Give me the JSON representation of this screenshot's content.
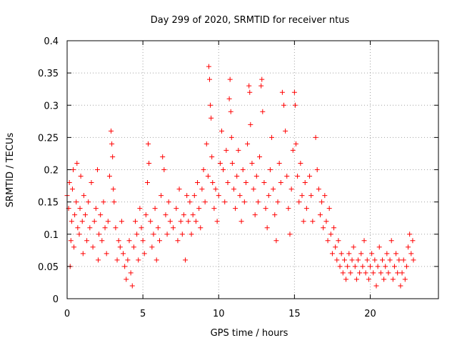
{
  "chart_data": {
    "type": "scatter",
    "title": "Day 299 of 2020, SRMTID for receiver ntus",
    "xlabel": "GPS time / hours",
    "ylabel": "SRMTID / TECUs",
    "xlim": [
      0,
      24.5
    ],
    "ylim": [
      0,
      0.4
    ],
    "x_ticks": [
      0,
      5,
      10,
      15,
      20
    ],
    "x_tick_labels": [
      "0",
      "5",
      "10",
      "15",
      "20"
    ],
    "y_ticks": [
      0,
      0.05,
      0.1,
      0.15,
      0.2,
      0.25,
      0.3,
      0.35,
      0.4
    ],
    "y_tick_labels": [
      "0",
      "0.05",
      "0.1",
      "0.15",
      "0.2",
      "0.25",
      "0.3",
      "0.35",
      "0.4"
    ],
    "grid": true,
    "marker": "plus",
    "color": "#ff0000",
    "series": [
      {
        "name": "SRMTID",
        "points": [
          [
            0.0,
            0.16
          ],
          [
            0.1,
            0.14
          ],
          [
            0.15,
            0.18
          ],
          [
            0.2,
            0.05
          ],
          [
            0.25,
            0.09
          ],
          [
            0.3,
            0.12
          ],
          [
            0.35,
            0.17
          ],
          [
            0.4,
            0.2
          ],
          [
            0.45,
            0.08
          ],
          [
            0.5,
            0.13
          ],
          [
            0.6,
            0.15
          ],
          [
            0.65,
            0.21
          ],
          [
            0.7,
            0.11
          ],
          [
            0.8,
            0.1
          ],
          [
            0.85,
            0.14
          ],
          [
            0.9,
            0.19
          ],
          [
            1.0,
            0.12
          ],
          [
            1.05,
            0.07
          ],
          [
            1.1,
            0.16
          ],
          [
            1.2,
            0.13
          ],
          [
            1.3,
            0.09
          ],
          [
            1.4,
            0.15
          ],
          [
            1.5,
            0.11
          ],
          [
            1.6,
            0.18
          ],
          [
            1.7,
            0.08
          ],
          [
            1.8,
            0.12
          ],
          [
            1.9,
            0.14
          ],
          [
            2.0,
            0.2
          ],
          [
            2.05,
            0.06
          ],
          [
            2.1,
            0.1
          ],
          [
            2.2,
            0.13
          ],
          [
            2.3,
            0.09
          ],
          [
            2.4,
            0.15
          ],
          [
            2.5,
            0.11
          ],
          [
            2.6,
            0.07
          ],
          [
            2.7,
            0.12
          ],
          [
            2.8,
            0.19
          ],
          [
            2.9,
            0.26
          ],
          [
            2.95,
            0.24
          ],
          [
            3.0,
            0.22
          ],
          [
            3.05,
            0.17
          ],
          [
            3.1,
            0.15
          ],
          [
            3.2,
            0.11
          ],
          [
            3.3,
            0.06
          ],
          [
            3.4,
            0.09
          ],
          [
            3.5,
            0.08
          ],
          [
            3.6,
            0.12
          ],
          [
            3.7,
            0.07
          ],
          [
            3.8,
            0.05
          ],
          [
            3.9,
            0.03
          ],
          [
            4.0,
            0.06
          ],
          [
            4.1,
            0.09
          ],
          [
            4.2,
            0.04
          ],
          [
            4.3,
            0.02
          ],
          [
            4.4,
            0.08
          ],
          [
            4.5,
            0.12
          ],
          [
            4.6,
            0.1
          ],
          [
            4.7,
            0.06
          ],
          [
            4.8,
            0.14
          ],
          [
            4.9,
            0.11
          ],
          [
            5.0,
            0.09
          ],
          [
            5.1,
            0.07
          ],
          [
            5.2,
            0.13
          ],
          [
            5.3,
            0.18
          ],
          [
            5.35,
            0.24
          ],
          [
            5.4,
            0.21
          ],
          [
            5.5,
            0.12
          ],
          [
            5.6,
            0.08
          ],
          [
            5.7,
            0.1
          ],
          [
            5.8,
            0.14
          ],
          [
            5.9,
            0.06
          ],
          [
            6.0,
            0.11
          ],
          [
            6.1,
            0.09
          ],
          [
            6.2,
            0.16
          ],
          [
            6.3,
            0.22
          ],
          [
            6.4,
            0.2
          ],
          [
            6.5,
            0.13
          ],
          [
            6.6,
            0.1
          ],
          [
            6.7,
            0.15
          ],
          [
            6.8,
            0.12
          ],
          [
            7.0,
            0.11
          ],
          [
            7.2,
            0.14
          ],
          [
            7.3,
            0.09
          ],
          [
            7.4,
            0.17
          ],
          [
            7.5,
            0.12
          ],
          [
            7.6,
            0.1
          ],
          [
            7.7,
            0.13
          ],
          [
            7.8,
            0.06
          ],
          [
            7.9,
            0.16
          ],
          [
            8.0,
            0.12
          ],
          [
            8.1,
            0.15
          ],
          [
            8.2,
            0.1
          ],
          [
            8.3,
            0.13
          ],
          [
            8.4,
            0.16
          ],
          [
            8.5,
            0.12
          ],
          [
            8.6,
            0.18
          ],
          [
            8.7,
            0.14
          ],
          [
            8.8,
            0.11
          ],
          [
            8.9,
            0.17
          ],
          [
            9.0,
            0.2
          ],
          [
            9.1,
            0.15
          ],
          [
            9.2,
            0.24
          ],
          [
            9.3,
            0.19
          ],
          [
            9.35,
            0.36
          ],
          [
            9.4,
            0.34
          ],
          [
            9.45,
            0.3
          ],
          [
            9.5,
            0.28
          ],
          [
            9.55,
            0.22
          ],
          [
            9.6,
            0.18
          ],
          [
            9.7,
            0.14
          ],
          [
            9.8,
            0.17
          ],
          [
            9.9,
            0.12
          ],
          [
            10.0,
            0.16
          ],
          [
            10.1,
            0.21
          ],
          [
            10.2,
            0.26
          ],
          [
            10.3,
            0.2
          ],
          [
            10.4,
            0.15
          ],
          [
            10.5,
            0.23
          ],
          [
            10.6,
            0.18
          ],
          [
            10.7,
            0.31
          ],
          [
            10.75,
            0.34
          ],
          [
            10.8,
            0.29
          ],
          [
            10.85,
            0.25
          ],
          [
            10.9,
            0.21
          ],
          [
            11.0,
            0.17
          ],
          [
            11.1,
            0.14
          ],
          [
            11.2,
            0.19
          ],
          [
            11.3,
            0.23
          ],
          [
            11.4,
            0.16
          ],
          [
            11.5,
            0.12
          ],
          [
            11.6,
            0.2
          ],
          [
            11.7,
            0.15
          ],
          [
            11.8,
            0.18
          ],
          [
            11.9,
            0.24
          ],
          [
            12.0,
            0.33
          ],
          [
            12.05,
            0.32
          ],
          [
            12.1,
            0.27
          ],
          [
            12.2,
            0.21
          ],
          [
            12.3,
            0.17
          ],
          [
            12.4,
            0.13
          ],
          [
            12.5,
            0.19
          ],
          [
            12.6,
            0.15
          ],
          [
            12.7,
            0.22
          ],
          [
            12.8,
            0.33
          ],
          [
            12.85,
            0.34
          ],
          [
            12.9,
            0.29
          ],
          [
            13.0,
            0.18
          ],
          [
            13.1,
            0.14
          ],
          [
            13.2,
            0.11
          ],
          [
            13.3,
            0.16
          ],
          [
            13.4,
            0.2
          ],
          [
            13.5,
            0.25
          ],
          [
            13.6,
            0.17
          ],
          [
            13.7,
            0.13
          ],
          [
            13.8,
            0.09
          ],
          [
            13.9,
            0.15
          ],
          [
            14.0,
            0.21
          ],
          [
            14.1,
            0.18
          ],
          [
            14.2,
            0.32
          ],
          [
            14.3,
            0.3
          ],
          [
            14.4,
            0.26
          ],
          [
            14.5,
            0.19
          ],
          [
            14.6,
            0.14
          ],
          [
            14.7,
            0.1
          ],
          [
            14.8,
            0.17
          ],
          [
            14.9,
            0.23
          ],
          [
            15.0,
            0.32
          ],
          [
            15.05,
            0.3
          ],
          [
            15.1,
            0.24
          ],
          [
            15.2,
            0.19
          ],
          [
            15.3,
            0.15
          ],
          [
            15.4,
            0.21
          ],
          [
            15.5,
            0.16
          ],
          [
            15.6,
            0.12
          ],
          [
            15.7,
            0.18
          ],
          [
            15.8,
            0.14
          ],
          [
            16.0,
            0.19
          ],
          [
            16.1,
            0.16
          ],
          [
            16.2,
            0.12
          ],
          [
            16.4,
            0.25
          ],
          [
            16.5,
            0.2
          ],
          [
            16.6,
            0.17
          ],
          [
            16.7,
            0.13
          ],
          [
            16.8,
            0.15
          ],
          [
            16.9,
            0.11
          ],
          [
            17.0,
            0.16
          ],
          [
            17.1,
            0.12
          ],
          [
            17.2,
            0.09
          ],
          [
            17.3,
            0.14
          ],
          [
            17.4,
            0.1
          ],
          [
            17.5,
            0.07
          ],
          [
            17.6,
            0.11
          ],
          [
            17.7,
            0.08
          ],
          [
            17.8,
            0.06
          ],
          [
            17.9,
            0.09
          ],
          [
            18.0,
            0.05
          ],
          [
            18.1,
            0.07
          ],
          [
            18.2,
            0.04
          ],
          [
            18.3,
            0.06
          ],
          [
            18.4,
            0.03
          ],
          [
            18.5,
            0.05
          ],
          [
            18.6,
            0.07
          ],
          [
            18.7,
            0.04
          ],
          [
            18.8,
            0.06
          ],
          [
            18.9,
            0.08
          ],
          [
            19.0,
            0.05
          ],
          [
            19.1,
            0.03
          ],
          [
            19.2,
            0.06
          ],
          [
            19.3,
            0.04
          ],
          [
            19.4,
            0.07
          ],
          [
            19.5,
            0.05
          ],
          [
            19.6,
            0.09
          ],
          [
            19.7,
            0.04
          ],
          [
            19.8,
            0.06
          ],
          [
            19.9,
            0.03
          ],
          [
            20.0,
            0.05
          ],
          [
            20.1,
            0.07
          ],
          [
            20.2,
            0.04
          ],
          [
            20.3,
            0.06
          ],
          [
            20.4,
            0.02
          ],
          [
            20.5,
            0.05
          ],
          [
            20.6,
            0.08
          ],
          [
            20.7,
            0.04
          ],
          [
            20.8,
            0.06
          ],
          [
            20.9,
            0.03
          ],
          [
            21.0,
            0.05
          ],
          [
            21.1,
            0.07
          ],
          [
            21.2,
            0.04
          ],
          [
            21.3,
            0.06
          ],
          [
            21.4,
            0.09
          ],
          [
            21.5,
            0.03
          ],
          [
            21.6,
            0.05
          ],
          [
            21.7,
            0.07
          ],
          [
            21.8,
            0.04
          ],
          [
            21.9,
            0.06
          ],
          [
            22.0,
            0.02
          ],
          [
            22.1,
            0.04
          ],
          [
            22.2,
            0.06
          ],
          [
            22.3,
            0.03
          ],
          [
            22.4,
            0.05
          ],
          [
            22.5,
            0.08
          ],
          [
            22.6,
            0.1
          ],
          [
            22.7,
            0.07
          ],
          [
            22.8,
            0.09
          ],
          [
            22.85,
            0.06
          ]
        ]
      }
    ]
  }
}
